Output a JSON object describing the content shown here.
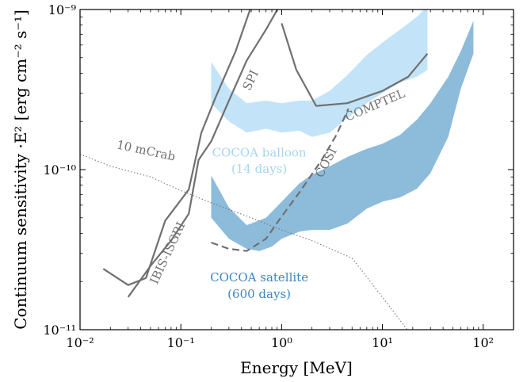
{
  "chart_data": {
    "type": "area",
    "xscale": "log",
    "yscale": "log",
    "xlim": [
      0.01,
      200
    ],
    "ylim": [
      1e-11,
      1e-09
    ],
    "xlabel": "Energy [MeV]",
    "ylabel": "Continuum sensitivity ·E² [erg cm⁻² s⁻¹]",
    "grid": false,
    "legend": "none",
    "xticks": [
      {
        "value": 0.01,
        "label": "10⁻²"
      },
      {
        "value": 0.1,
        "label": "10⁻¹"
      },
      {
        "value": 1,
        "label": "10⁰"
      },
      {
        "value": 10,
        "label": "10¹"
      },
      {
        "value": 100,
        "label": "10²"
      }
    ],
    "yticks": [
      {
        "value": 1e-11,
        "label": "10⁻¹¹"
      },
      {
        "value": 1e-10,
        "label": "10⁻¹⁰"
      },
      {
        "value": 1e-09,
        "label": "10⁻⁹"
      }
    ],
    "series": [
      {
        "name": "10 mCrab",
        "style": "dotted",
        "color": "#777777",
        "points": [
          [
            0.01,
            1.25e-10
          ],
          [
            0.02,
            1.05e-10
          ],
          [
            0.05,
            9e-11
          ],
          [
            0.1,
            7.4e-11
          ],
          [
            0.2,
            6.2e-11
          ],
          [
            0.5,
            5e-11
          ],
          [
            1,
            4.2e-11
          ],
          [
            2,
            3.6e-11
          ],
          [
            5,
            2.8e-11
          ],
          [
            10,
            1.6e-11
          ],
          [
            20,
            9e-12
          ]
        ]
      },
      {
        "name": "IBIS-ISGRI",
        "style": "solid",
        "color": "#707070",
        "points": [
          [
            0.017,
            2.4e-11
          ],
          [
            0.03,
            1.9e-11
          ],
          [
            0.045,
            2.1e-11
          ],
          [
            0.07,
            4.8e-11
          ],
          [
            0.12,
            7.5e-11
          ],
          [
            0.16,
            1.7e-10
          ],
          [
            0.22,
            2.8e-10
          ],
          [
            0.35,
            5.5e-10
          ],
          [
            0.5,
            1.05e-09
          ]
        ]
      },
      {
        "name": "SPI",
        "style": "solid",
        "color": "#707070",
        "points": [
          [
            0.03,
            1.6e-11
          ],
          [
            0.05,
            2.5e-11
          ],
          [
            0.08,
            3.6e-11
          ],
          [
            0.12,
            5.3e-11
          ],
          [
            0.15,
            1.15e-10
          ],
          [
            0.2,
            1.5e-10
          ],
          [
            0.3,
            2.7e-10
          ],
          [
            0.45,
            4.8e-10
          ],
          [
            0.7,
            7.5e-10
          ],
          [
            0.95,
            1.05e-09
          ]
        ]
      },
      {
        "name": "COMPTEL",
        "style": "solid",
        "color": "#707070",
        "points": [
          [
            1.0,
            8.2e-10
          ],
          [
            1.4,
            4.2e-10
          ],
          [
            2.2,
            2.5e-10
          ],
          [
            4.5,
            2.6e-10
          ],
          [
            10,
            3.1e-10
          ],
          [
            18,
            3.8e-10
          ],
          [
            28,
            5.3e-10
          ]
        ]
      },
      {
        "name": "COSI",
        "style": "dashed",
        "color": "#707070",
        "points": [
          [
            0.2,
            3.5e-11
          ],
          [
            0.3,
            3.2e-11
          ],
          [
            0.45,
            3.1e-11
          ],
          [
            0.7,
            3.7e-11
          ],
          [
            1.0,
            5.1e-11
          ],
          [
            1.5,
            7.2e-11
          ],
          [
            2.5,
            1.15e-10
          ],
          [
            3.5,
            1.65e-10
          ],
          [
            4.6,
            2.4e-10
          ]
        ]
      }
    ],
    "bands": [
      {
        "name": "COCOA balloon (14 days)",
        "color": "#c3e3f8",
        "upper": [
          [
            0.2,
            4.7e-10
          ],
          [
            0.3,
            3.2e-10
          ],
          [
            0.45,
            2.6e-10
          ],
          [
            0.7,
            2.7e-10
          ],
          [
            1,
            2.6e-10
          ],
          [
            1.5,
            2.7e-10
          ],
          [
            2,
            2.7e-10
          ],
          [
            3,
            3.1e-10
          ],
          [
            4.5,
            3.9e-10
          ],
          [
            7,
            5.2e-10
          ],
          [
            10,
            6.2e-10
          ],
          [
            15,
            7.5e-10
          ],
          [
            22,
            9e-10
          ],
          [
            28,
            1.05e-09
          ]
        ],
        "lower": [
          [
            0.2,
            2.6e-10
          ],
          [
            0.3,
            2e-10
          ],
          [
            0.45,
            1.7e-10
          ],
          [
            0.7,
            1.8e-10
          ],
          [
            1,
            1.7e-10
          ],
          [
            1.5,
            1.75e-10
          ],
          [
            2,
            1.6e-10
          ],
          [
            3,
            1.7e-10
          ],
          [
            4.5,
            2.1e-10
          ],
          [
            7,
            2.6e-10
          ],
          [
            10,
            3e-10
          ],
          [
            15,
            3.5e-10
          ],
          [
            22,
            3.8e-10
          ],
          [
            28,
            4.2e-10
          ]
        ]
      },
      {
        "name": "COCOA satellite (600 days)",
        "color": "#8dbcdb",
        "upper": [
          [
            0.2,
            9.2e-11
          ],
          [
            0.3,
            5.8e-11
          ],
          [
            0.45,
            4.5e-11
          ],
          [
            0.7,
            5e-11
          ],
          [
            1,
            6.3e-11
          ],
          [
            1.5,
            8.2e-11
          ],
          [
            2,
            9.3e-11
          ],
          [
            3,
            1.05e-10
          ],
          [
            4.5,
            1.2e-10
          ],
          [
            7,
            1.35e-10
          ],
          [
            10,
            1.45e-10
          ],
          [
            15,
            1.65e-10
          ],
          [
            22,
            2.05e-10
          ],
          [
            30,
            2.6e-10
          ],
          [
            45,
            3.8e-10
          ],
          [
            60,
            5.5e-10
          ],
          [
            80,
            8.5e-10
          ]
        ],
        "lower": [
          [
            0.2,
            5e-11
          ],
          [
            0.3,
            3.7e-11
          ],
          [
            0.45,
            3.2e-11
          ],
          [
            0.6,
            3.1e-11
          ],
          [
            0.8,
            3.3e-11
          ],
          [
            1,
            3.7e-11
          ],
          [
            1.5,
            4.1e-11
          ],
          [
            2,
            4.2e-11
          ],
          [
            3,
            4.2e-11
          ],
          [
            4.5,
            4.6e-11
          ],
          [
            7,
            5.7e-11
          ],
          [
            10,
            6.3e-11
          ],
          [
            15,
            6.7e-11
          ],
          [
            22,
            7.6e-11
          ],
          [
            30,
            9.5e-11
          ],
          [
            45,
            1.6e-10
          ],
          [
            60,
            3.2e-10
          ],
          [
            80,
            5.3e-10
          ]
        ]
      }
    ],
    "annotations": [
      {
        "text": "SPI",
        "x": 0.5,
        "y": 3.6e-10,
        "rotate": -65,
        "color": "#707070"
      },
      {
        "text": "COMPTEL",
        "x": 8.5,
        "y": 2.5e-10,
        "rotate": -23,
        "color": "#707070"
      },
      {
        "text": "10 mCrab",
        "x": 0.045,
        "y": 1.3e-10,
        "rotate": 12,
        "color": "#707070"
      },
      {
        "text": "IBIS-ISGRI",
        "x": 0.075,
        "y": 3e-11,
        "rotate": -65,
        "color": "#707070"
      },
      {
        "text": "COSI",
        "x": 2.8,
        "y": 1.1e-10,
        "rotate": -62,
        "color": "#707070"
      },
      {
        "text": "COCOA balloon",
        "x": 0.6,
        "y": 1.26e-10,
        "rotate": 0,
        "color": "#a8d4f2"
      },
      {
        "text": "(14 days)",
        "x": 0.6,
        "y": 1e-10,
        "rotate": 0,
        "color": "#a8d4f2"
      },
      {
        "text": "COCOA satellite",
        "x": 0.6,
        "y": 2.1e-11,
        "rotate": 0,
        "color": "#3a86c4"
      },
      {
        "text": "(600 days)",
        "x": 0.6,
        "y": 1.65e-11,
        "rotate": 0,
        "color": "#3a86c4"
      }
    ]
  }
}
